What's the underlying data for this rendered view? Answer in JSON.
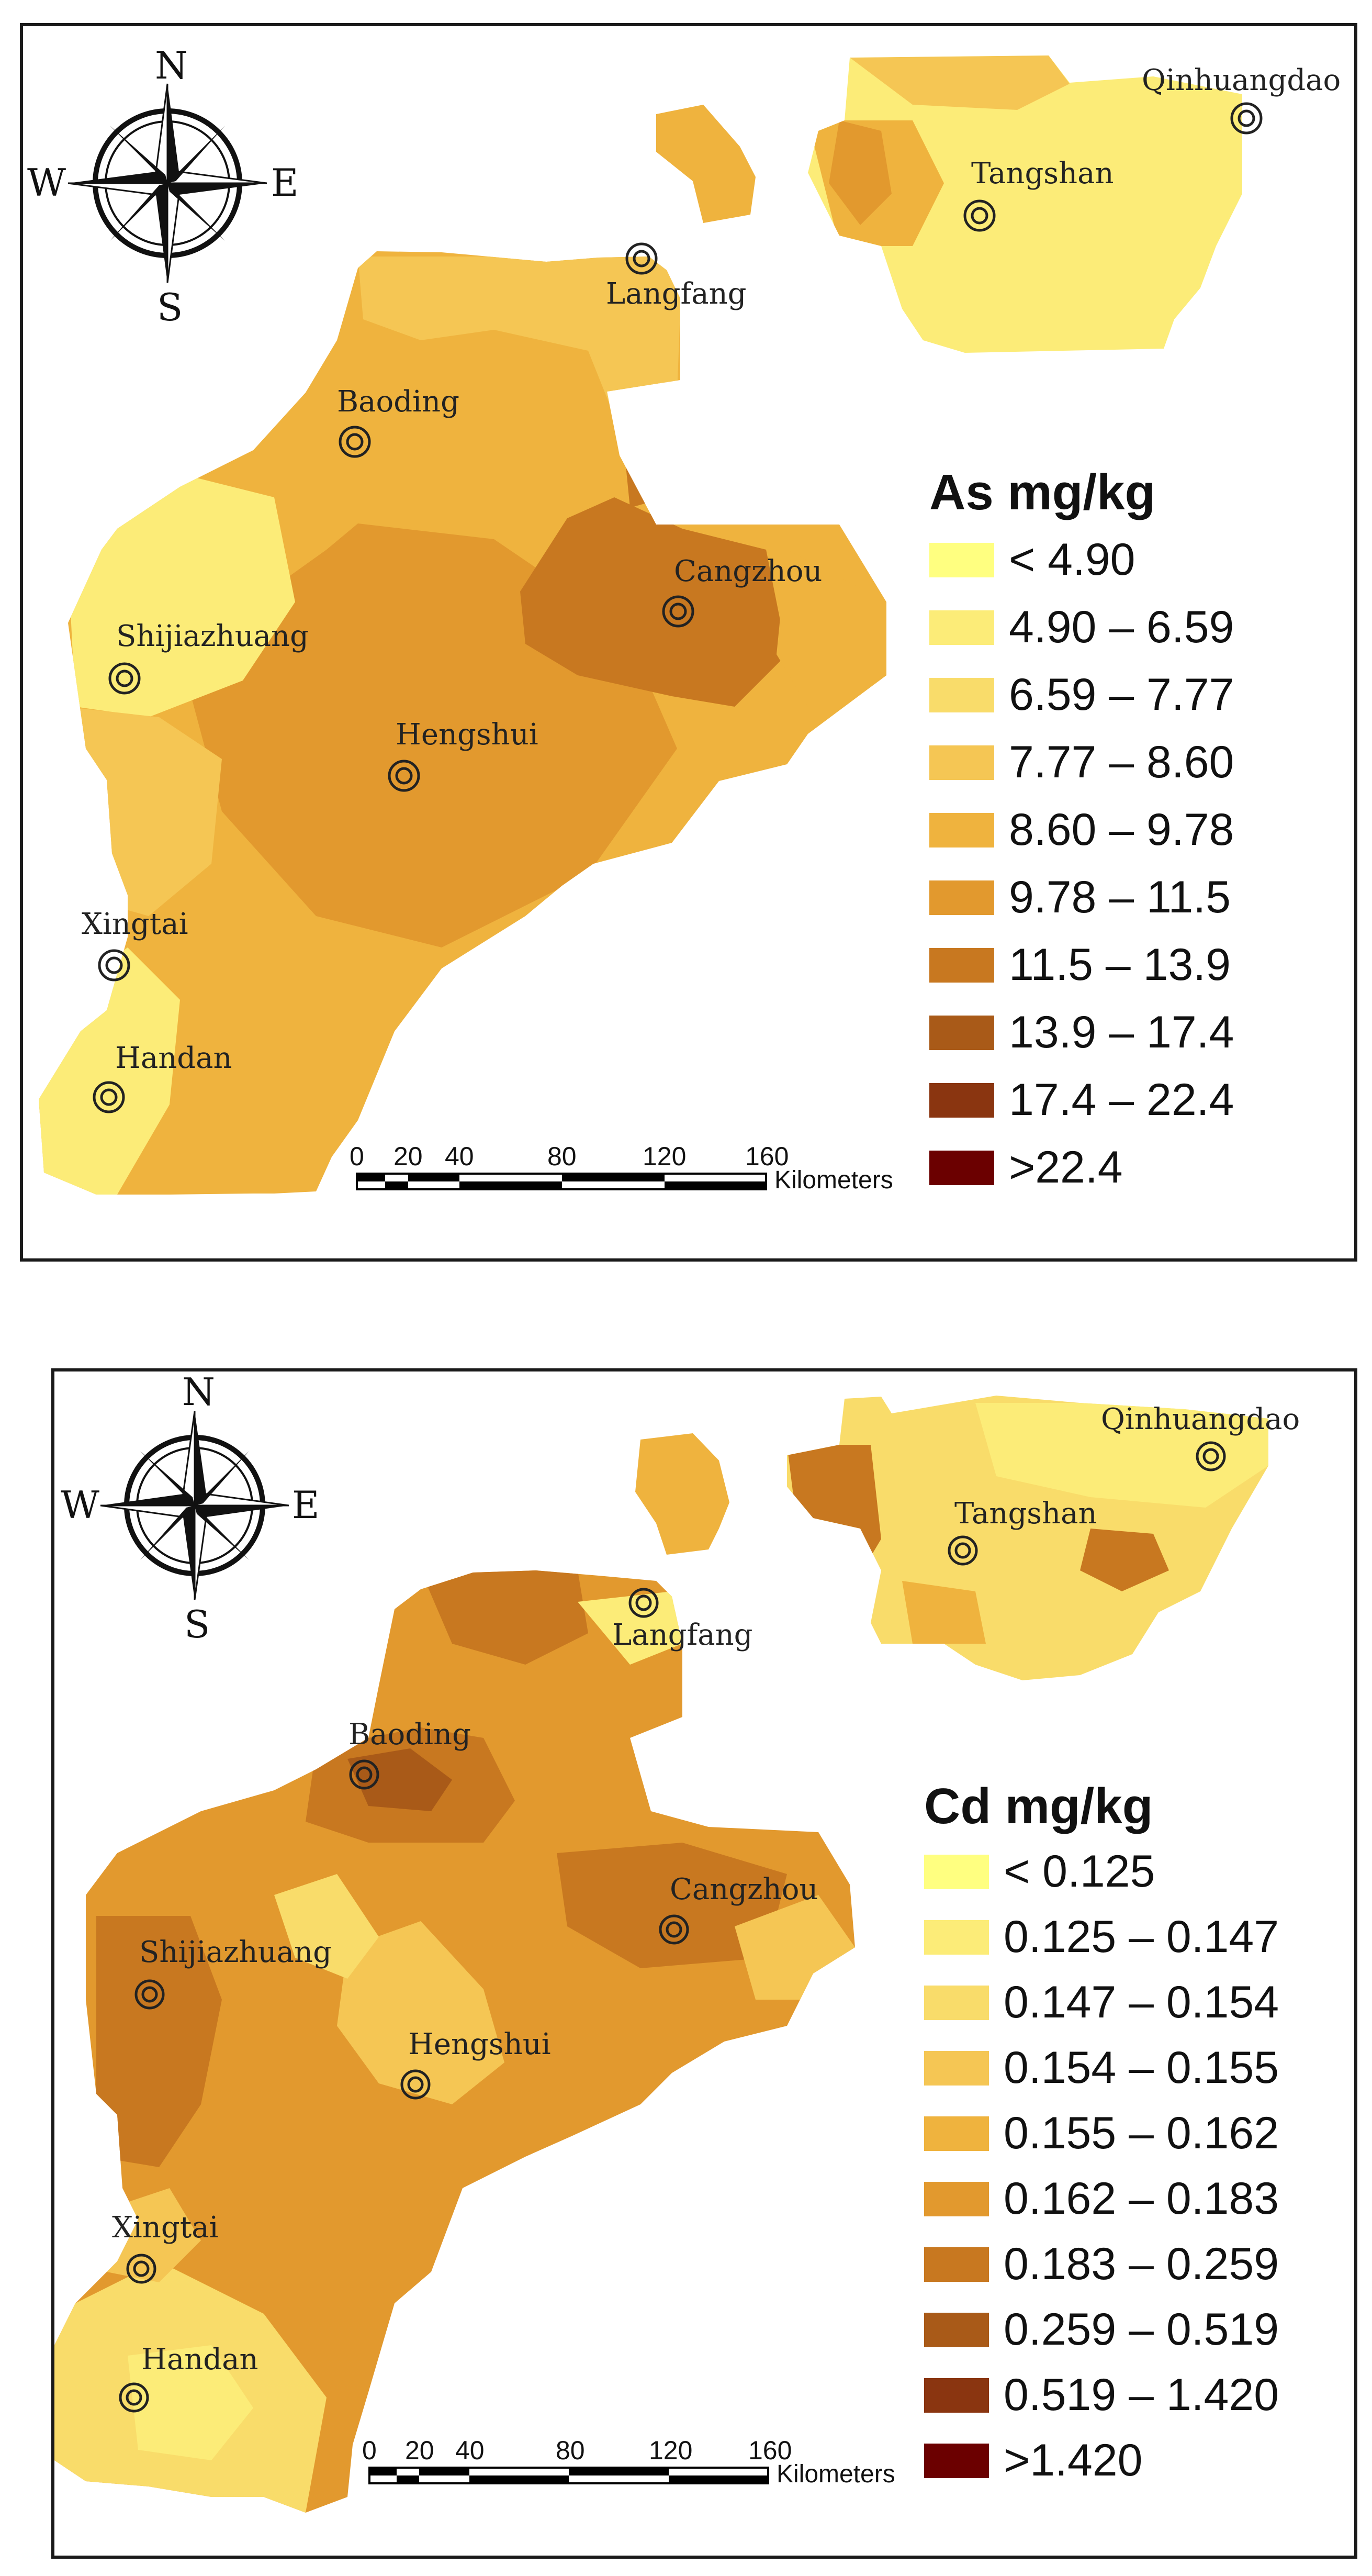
{
  "maps": [
    {
      "id": "as",
      "legend_title": "As mg/kg",
      "classes": [
        {
          "label": "< 4.90",
          "color": "#ffff80"
        },
        {
          "label": "4.90 – 6.59",
          "color": "#fcec78"
        },
        {
          "label": "6.59 – 7.77",
          "color": "#f9dc6a"
        },
        {
          "label": "7.77 – 8.60",
          "color": "#f5c654"
        },
        {
          "label": "8.60 – 9.78",
          "color": "#efb33e"
        },
        {
          "label": "9.78 – 11.5",
          "color": "#e2992e"
        },
        {
          "label": "11.5 – 13.9",
          "color": "#c87820"
        },
        {
          "label": "13.9 – 17.4",
          "color": "#a95a18"
        },
        {
          "label": "17.4 – 22.4",
          "color": "#8a3510"
        },
        {
          "label": ">22.4",
          "color": "#6b0000"
        }
      ],
      "cities": [
        "Qinhuangdao",
        "Tangshan",
        "Langfang",
        "Baoding",
        "Cangzhou",
        "Shijiazhuang",
        "Hengshui",
        "Xingtai",
        "Handan"
      ]
    },
    {
      "id": "cd",
      "legend_title": "Cd mg/kg",
      "classes": [
        {
          "label": "< 0.125",
          "color": "#ffff80"
        },
        {
          "label": "0.125 – 0.147",
          "color": "#fcec78"
        },
        {
          "label": "0.147 – 0.154",
          "color": "#f9dc6a"
        },
        {
          "label": "0.154 – 0.155",
          "color": "#f5c654"
        },
        {
          "label": "0.155 – 0.162",
          "color": "#efb33e"
        },
        {
          "label": "0.162 – 0.183",
          "color": "#e2992e"
        },
        {
          "label": "0.183 – 0.259",
          "color": "#c87820"
        },
        {
          "label": "0.259 – 0.519",
          "color": "#a95a18"
        },
        {
          "label": "0.519 – 1.420",
          "color": "#8a3510"
        },
        {
          "label": ">1.420",
          "color": "#6b0000"
        }
      ],
      "cities": [
        "Qinhuangdao",
        "Tangshan",
        "Langfang",
        "Baoding",
        "Cangzhou",
        "Shijiazhuang",
        "Hengshui",
        "Xingtai",
        "Handan"
      ]
    }
  ],
  "compass": {
    "n": "N",
    "s": "S",
    "e": "E",
    "w": "W"
  },
  "scale_bar": {
    "ticks": [
      "0",
      "20",
      "40",
      "80",
      "120",
      "160"
    ],
    "unit": "Kilometers"
  }
}
